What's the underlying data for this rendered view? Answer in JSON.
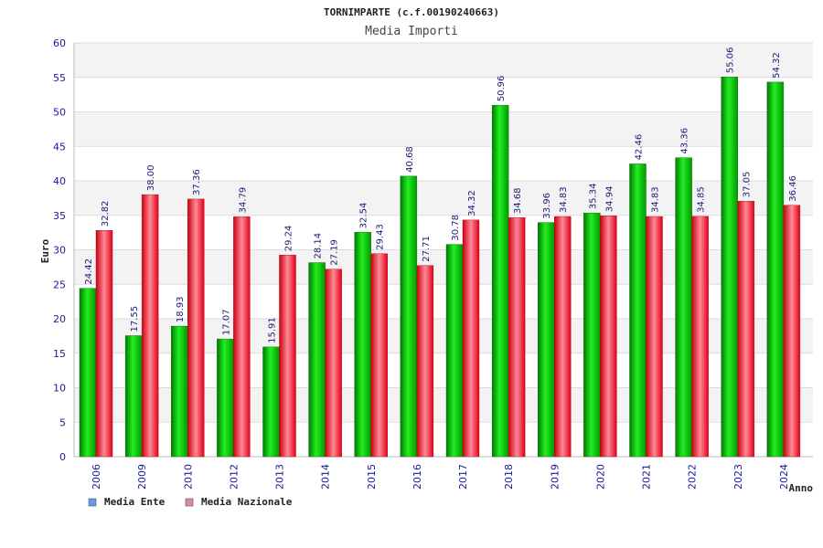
{
  "chart_data": {
    "type": "bar",
    "title": "TORNIMPARTE (c.f.00190240663)",
    "subtitle": "Media Importi",
    "xlabel": "Anno",
    "ylabel": "Euro",
    "ylim": [
      0,
      60
    ],
    "yticks": [
      0,
      5,
      10,
      15,
      20,
      25,
      30,
      35,
      40,
      45,
      50,
      55,
      60
    ],
    "grid": true,
    "legend_position": "bottom-left",
    "categories": [
      "2006",
      "2009",
      "2010",
      "2012",
      "2013",
      "2014",
      "2015",
      "2016",
      "2017",
      "2018",
      "2019",
      "2020",
      "2021",
      "2022",
      "2023",
      "2024"
    ],
    "series": [
      {
        "name": "Media Ente",
        "color": "#00cc00",
        "legend_color": "#6699ee",
        "values": [
          24.42,
          17.55,
          18.93,
          17.07,
          15.91,
          28.14,
          32.54,
          40.68,
          30.78,
          50.96,
          33.96,
          35.34,
          42.46,
          43.36,
          55.06,
          54.32
        ],
        "labels": [
          "24.42",
          "17.55",
          "18.93",
          "17.07",
          "15.91",
          "28.14",
          "32.54",
          "40.68",
          "30.78",
          "50.96",
          "33.96",
          "35.34",
          "42.46",
          "43.36",
          "55.06",
          "54.32"
        ]
      },
      {
        "name": "Media Nazionale",
        "color": "#ee1122",
        "legend_color": "#dd88aa",
        "values": [
          32.82,
          38.0,
          37.36,
          34.79,
          29.24,
          27.19,
          29.43,
          27.71,
          34.32,
          34.68,
          34.83,
          34.94,
          34.83,
          34.85,
          37.05,
          36.46
        ],
        "labels": [
          "32.82",
          "38.00",
          "37.36",
          "34.79",
          "29.24",
          "27.19",
          "29.43",
          "27.71",
          "34.32",
          "34.68",
          "34.83",
          "34.94",
          "34.83",
          "34.85",
          "37.05",
          "36.46"
        ]
      }
    ]
  }
}
